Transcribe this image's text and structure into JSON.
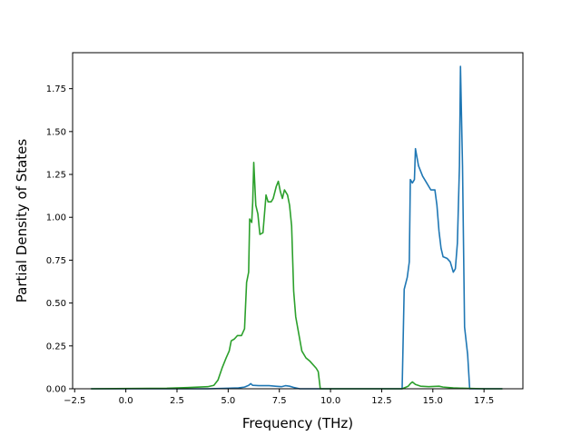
{
  "chart_data": {
    "type": "line",
    "title": "",
    "xlabel": "Frequency (THz)",
    "ylabel": "Partial Density of States",
    "xlim": [
      -2.6,
      19.4
    ],
    "ylim": [
      0.0,
      1.96
    ],
    "xticks": [
      -2.5,
      0.0,
      2.5,
      5.0,
      7.5,
      10.0,
      12.5,
      15.0,
      17.5
    ],
    "xtick_labels": [
      "−2.5",
      "0.0",
      "2.5",
      "5.0",
      "7.5",
      "10.0",
      "12.5",
      "15.0",
      "17.5"
    ],
    "yticks": [
      0.0,
      0.25,
      0.5,
      0.75,
      1.0,
      1.25,
      1.5,
      1.75
    ],
    "ytick_labels": [
      "0.00",
      "0.25",
      "0.50",
      "0.75",
      "1.00",
      "1.25",
      "1.50",
      "1.75"
    ],
    "grid": false,
    "legend": "none",
    "series": [
      {
        "color": "#1f77b4",
        "points": [
          [
            -1.7,
            0.0
          ],
          [
            4.0,
            0.0
          ],
          [
            5.5,
            0.005
          ],
          [
            5.8,
            0.01
          ],
          [
            6.0,
            0.02
          ],
          [
            6.1,
            0.03
          ],
          [
            6.2,
            0.02
          ],
          [
            6.5,
            0.018
          ],
          [
            7.0,
            0.018
          ],
          [
            7.3,
            0.015
          ],
          [
            7.6,
            0.012
          ],
          [
            7.8,
            0.018
          ],
          [
            8.0,
            0.015
          ],
          [
            8.2,
            0.008
          ],
          [
            8.5,
            0.0
          ],
          [
            13.5,
            0.0
          ],
          [
            13.6,
            0.58
          ],
          [
            13.75,
            0.65
          ],
          [
            13.85,
            0.74
          ],
          [
            13.9,
            1.22
          ],
          [
            14.0,
            1.2
          ],
          [
            14.1,
            1.22
          ],
          [
            14.15,
            1.4
          ],
          [
            14.3,
            1.3
          ],
          [
            14.5,
            1.24
          ],
          [
            14.7,
            1.2
          ],
          [
            14.9,
            1.16
          ],
          [
            15.1,
            1.16
          ],
          [
            15.2,
            1.07
          ],
          [
            15.3,
            0.92
          ],
          [
            15.4,
            0.82
          ],
          [
            15.5,
            0.77
          ],
          [
            15.7,
            0.76
          ],
          [
            15.85,
            0.74
          ],
          [
            16.0,
            0.68
          ],
          [
            16.1,
            0.7
          ],
          [
            16.2,
            0.85
          ],
          [
            16.3,
            1.3
          ],
          [
            16.35,
            1.88
          ],
          [
            16.45,
            1.3
          ],
          [
            16.55,
            0.36
          ],
          [
            16.7,
            0.2
          ],
          [
            16.8,
            0.0
          ],
          [
            18.4,
            0.0
          ]
        ]
      },
      {
        "color": "#2ca02c",
        "points": [
          [
            -1.7,
            0.0
          ],
          [
            2.0,
            0.003
          ],
          [
            3.0,
            0.007
          ],
          [
            4.0,
            0.012
          ],
          [
            4.3,
            0.02
          ],
          [
            4.5,
            0.05
          ],
          [
            4.7,
            0.12
          ],
          [
            4.9,
            0.18
          ],
          [
            5.05,
            0.22
          ],
          [
            5.15,
            0.28
          ],
          [
            5.3,
            0.29
          ],
          [
            5.45,
            0.31
          ],
          [
            5.65,
            0.31
          ],
          [
            5.8,
            0.35
          ],
          [
            5.9,
            0.62
          ],
          [
            6.0,
            0.68
          ],
          [
            6.05,
            0.99
          ],
          [
            6.15,
            0.97
          ],
          [
            6.2,
            1.09
          ],
          [
            6.25,
            1.32
          ],
          [
            6.35,
            1.07
          ],
          [
            6.45,
            1.02
          ],
          [
            6.55,
            0.9
          ],
          [
            6.7,
            0.91
          ],
          [
            6.85,
            1.13
          ],
          [
            6.95,
            1.09
          ],
          [
            7.1,
            1.09
          ],
          [
            7.2,
            1.11
          ],
          [
            7.35,
            1.18
          ],
          [
            7.45,
            1.21
          ],
          [
            7.55,
            1.15
          ],
          [
            7.65,
            1.11
          ],
          [
            7.75,
            1.16
          ],
          [
            7.9,
            1.13
          ],
          [
            8.0,
            1.07
          ],
          [
            8.1,
            0.95
          ],
          [
            8.2,
            0.57
          ],
          [
            8.3,
            0.42
          ],
          [
            8.45,
            0.32
          ],
          [
            8.6,
            0.22
          ],
          [
            8.8,
            0.18
          ],
          [
            9.0,
            0.16
          ],
          [
            9.3,
            0.12
          ],
          [
            9.4,
            0.1
          ],
          [
            9.5,
            0.0
          ],
          [
            13.5,
            0.0
          ],
          [
            13.7,
            0.01
          ],
          [
            13.8,
            0.015
          ],
          [
            13.9,
            0.03
          ],
          [
            14.0,
            0.04
          ],
          [
            14.15,
            0.025
          ],
          [
            14.4,
            0.015
          ],
          [
            14.8,
            0.012
          ],
          [
            15.3,
            0.015
          ],
          [
            15.5,
            0.01
          ],
          [
            16.0,
            0.005
          ],
          [
            16.5,
            0.003
          ],
          [
            17.5,
            0.0
          ],
          [
            18.4,
            0.0
          ]
        ]
      }
    ]
  }
}
